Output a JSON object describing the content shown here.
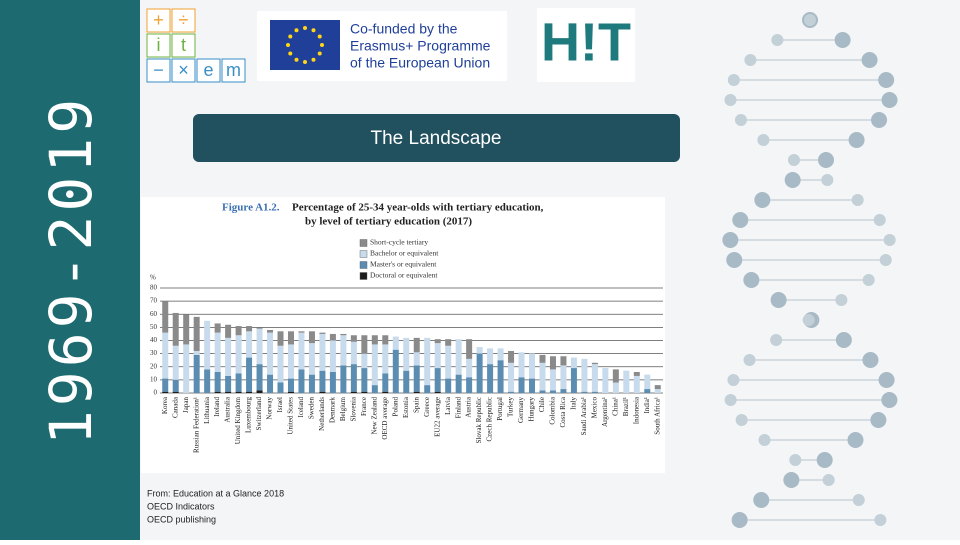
{
  "sidebar": {
    "years": "1969-2019"
  },
  "logos": {
    "itxem": [
      "+",
      "÷",
      "i",
      "t",
      "−",
      "×",
      "e",
      "m"
    ],
    "erasmus": [
      "Co-funded by the",
      "Erasmus+ Programme",
      "of the European Union"
    ],
    "hit": "H!T"
  },
  "header": {
    "title": "The Landscape"
  },
  "chart_data": {
    "type": "stacked_bar",
    "figure_label": "Figure A1.2.",
    "title": "Percentage of 25-34 year-olds with tertiary education,",
    "subtitle": "by level of tertiary education (2017)",
    "y_label": "%",
    "categories": [
      "Korea",
      "Canada",
      "Japan",
      "Russian Federation¹",
      "Lithuania",
      "Ireland",
      "Australia",
      "United Kingdom",
      "Luxembourg",
      "Switzerland",
      "Norway",
      "Israel",
      "United States",
      "Iceland",
      "Sweden",
      "Netherlands",
      "Denmark",
      "Belgium",
      "Slovenia",
      "France",
      "New Zealand",
      "OECD average",
      "Poland",
      "Estonia",
      "Spain",
      "Greece",
      "EU22 average",
      "Latvia",
      "Finland",
      "Austria",
      "Slovak Republic",
      "Czech Republic",
      "Portugal",
      "Turkey",
      "Germany",
      "Hungary",
      "Chile",
      "Colombia",
      "Costa Rica",
      "Italy",
      "Saudi Arabia¹",
      "Mexico",
      "Argentina¹",
      "China¹",
      "Brazil¹",
      "Indonesia",
      "India¹",
      "South Africa¹"
    ],
    "series": [
      {
        "name": "Doctoral or equivalent",
        "color": "#1c1c1c",
        "values": [
          1,
          1,
          0,
          0,
          0,
          1,
          1,
          1,
          1,
          2,
          0,
          0,
          1,
          0,
          0,
          1,
          0,
          0,
          1,
          1,
          0,
          1,
          0,
          0,
          1,
          0,
          1,
          0,
          0,
          0,
          0,
          0,
          0,
          0,
          0,
          0,
          0,
          0,
          0,
          0,
          0,
          0,
          0,
          0,
          0,
          0,
          0,
          0
        ]
      },
      {
        "name": "Master's or equivalent",
        "color": "#5b8db3",
        "values": [
          10,
          9,
          0,
          29,
          18,
          15,
          12,
          14,
          26,
          20,
          14,
          8,
          10,
          18,
          14,
          16,
          16,
          21,
          21,
          18,
          6,
          14,
          33,
          17,
          20,
          6,
          18,
          11,
          14,
          12,
          30,
          22,
          25,
          1,
          12,
          11,
          2,
          2,
          3,
          19,
          1,
          1,
          0,
          0,
          0,
          0,
          3,
          0
        ]
      },
      {
        "name": "Bachelor or equivalent",
        "color": "#c7dbec",
        "values": [
          35,
          26,
          37,
          3,
          37,
          30,
          29,
          29,
          20,
          27,
          32,
          28,
          26,
          28,
          24,
          28,
          24,
          23,
          17,
          11,
          31,
          22,
          10,
          25,
          10,
          36,
          19,
          25,
          27,
          14,
          5,
          12,
          9,
          22,
          19,
          19,
          21,
          16,
          18,
          8,
          25,
          21,
          19,
          8,
          17,
          13,
          11,
          3
        ]
      },
      {
        "name": "Short-cycle tertiary",
        "color": "#8a8a8a",
        "values": [
          24,
          25,
          23,
          26,
          0,
          7,
          10,
          7,
          4,
          1,
          2,
          11,
          10,
          1,
          9,
          1,
          5,
          1,
          5,
          14,
          7,
          7,
          0,
          0,
          11,
          0,
          3,
          5,
          0,
          15,
          0,
          0,
          0,
          9,
          0,
          0,
          6,
          10,
          7,
          0,
          0,
          1,
          0,
          10,
          0,
          3,
          0,
          3
        ]
      }
    ],
    "ylim": [
      0,
      80
    ],
    "yticks": [
      0,
      10,
      20,
      30,
      40,
      50,
      60,
      70,
      80
    ],
    "grid": true
  },
  "footer": [
    "From: Education at a Glance 2018",
    "OECD Indicators",
    "OECD publishing"
  ]
}
